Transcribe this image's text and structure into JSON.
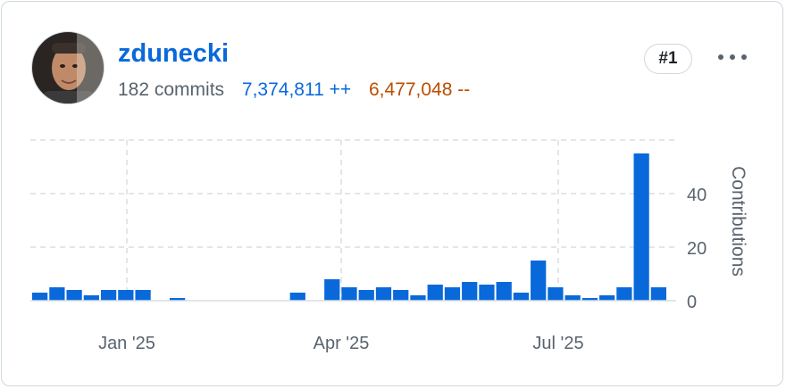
{
  "contributor": {
    "username": "zdunecki",
    "commits": "182 commits",
    "additions": "7,374,811 ++",
    "deletions": "6,477,048 --",
    "rank": "#1",
    "avatar_icon": "user-avatar",
    "more_icon": "kebab-horizontal-icon"
  },
  "colors": {
    "bar": "#0969da",
    "additions": "#0969da",
    "deletions": "#bc4c00",
    "grid": "#d8dee4",
    "muted_text": "#59636e"
  },
  "chart_data": {
    "type": "bar",
    "ylabel": "Contributions",
    "yticks": [
      0,
      20,
      40
    ],
    "ylim": [
      0,
      60
    ],
    "xticks": [
      "Jan '25",
      "Apr '25",
      "Jul '25"
    ],
    "grid": true,
    "values": [
      3,
      5,
      4,
      2,
      4,
      4,
      4,
      0,
      1,
      0,
      0,
      0,
      0,
      0,
      0,
      3,
      0,
      8,
      5,
      4,
      5,
      4,
      2,
      6,
      5,
      7,
      6,
      7,
      3,
      15,
      5,
      2,
      1,
      2,
      5,
      55,
      5
    ]
  }
}
